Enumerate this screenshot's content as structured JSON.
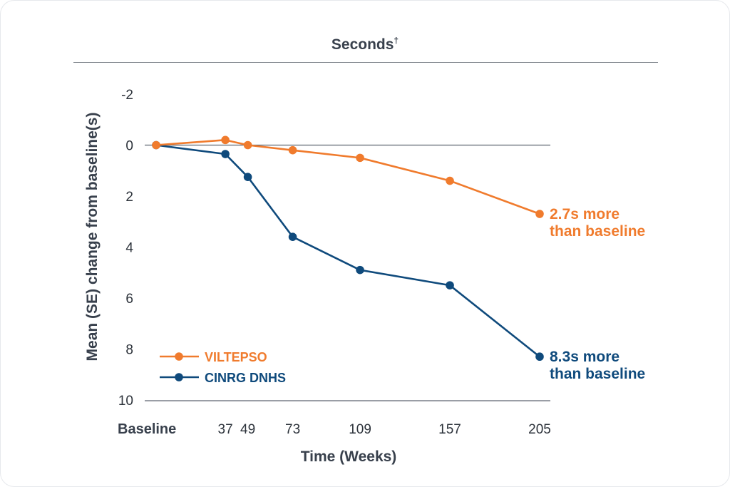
{
  "title": "Seconds",
  "title_mark": "†",
  "chart_data": {
    "type": "line",
    "xlabel": "Time (Weeks)",
    "ylabel": "Mean (SE) change from baseline(s)",
    "x_tick_labels": [
      "Baseline",
      "37",
      "49",
      "73",
      "109",
      "157",
      "205"
    ],
    "x": [
      0,
      37,
      49,
      73,
      109,
      157,
      205
    ],
    "y_ticks": [
      "-2",
      "0",
      "2",
      "4",
      "6",
      "8",
      "10"
    ],
    "ylim": [
      -2,
      10
    ],
    "y_inverted": true,
    "legend_position": "bottom-left",
    "series": [
      {
        "name": "VILTEPSO",
        "color": "#f07b2d",
        "x": [
          0,
          37,
          49,
          73,
          109,
          157,
          205
        ],
        "values": [
          0,
          -0.2,
          0,
          0.2,
          0.5,
          1.4,
          2.7
        ],
        "end_label": [
          "2.7s more",
          "than baseline"
        ]
      },
      {
        "name": "CINRG DNHS",
        "color": "#0f4a7c",
        "x": [
          0,
          37,
          49,
          73,
          109,
          157,
          205
        ],
        "values": [
          0,
          0.35,
          1.25,
          3.6,
          4.9,
          5.5,
          8.3
        ],
        "end_label": [
          "8.3s more",
          "than baseline"
        ]
      }
    ]
  }
}
